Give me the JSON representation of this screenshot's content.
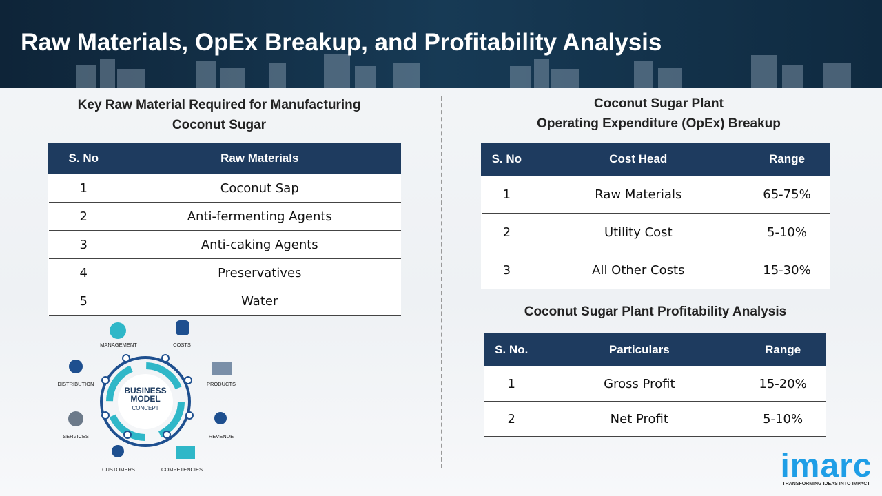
{
  "header": {
    "title": "Raw Materials, OpEx Breakup, and Profitability Analysis"
  },
  "raw_materials": {
    "title_lines": [
      "Key Raw Material Required for Manufacturing",
      "Coconut Sugar"
    ],
    "columns": [
      "S. No",
      "Raw Materials"
    ],
    "rows": [
      [
        "1",
        "Coconut Sap"
      ],
      [
        "2",
        "Anti-fermenting Agents"
      ],
      [
        "3",
        "Anti-caking Agents"
      ],
      [
        "4",
        "Preservatives"
      ],
      [
        "5",
        "Water"
      ]
    ]
  },
  "opex": {
    "title_lines": [
      "Coconut Sugar Plant",
      "Operating Expenditure (OpEx) Breakup"
    ],
    "columns": [
      "S. No",
      "Cost Head",
      "Range"
    ],
    "rows": [
      [
        "1",
        "Raw Materials",
        "65-75%"
      ],
      [
        "2",
        "Utility Cost",
        "5-10%"
      ],
      [
        "3",
        "All Other Costs",
        "15-30%"
      ]
    ]
  },
  "profitability": {
    "title_lines": [
      "Coconut Sugar Plant Profitability Analysis"
    ],
    "columns": [
      "S. No.",
      "Particulars",
      "Range"
    ],
    "rows": [
      [
        "1",
        "Gross Profit",
        "15-20%"
      ],
      [
        "2",
        "Net Profit",
        "5-10%"
      ]
    ]
  },
  "diagram": {
    "center_lines": [
      "BUSINESS",
      "MODEL",
      "CONCEPT"
    ],
    "labels": [
      "MANAGEMENT",
      "COSTS",
      "PRODUCTS",
      "REVENUE",
      "COMPETENCIES",
      "CUSTOMERS",
      "SERVICES",
      "DISTRIBUTION"
    ]
  },
  "logo": {
    "name": "imarc",
    "tagline": "TRANSFORMING IDEAS INTO IMPACT"
  }
}
